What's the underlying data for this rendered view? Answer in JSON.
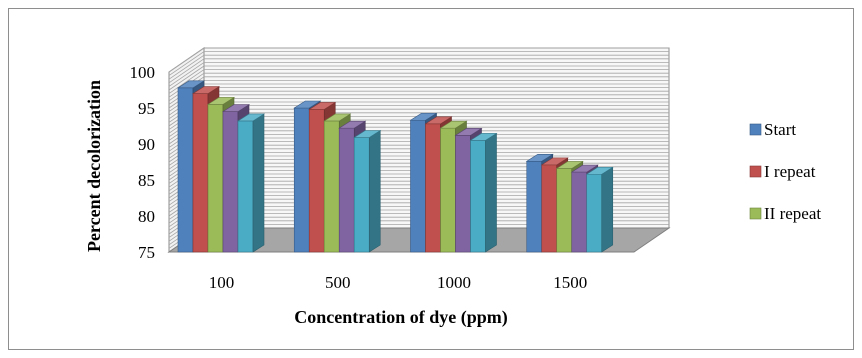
{
  "chart_data": {
    "type": "bar",
    "title": "",
    "xlabel": "Concentration of dye (ppm)",
    "ylabel": "Percent decolorization",
    "categories": [
      "100",
      "500",
      "1000",
      "1500"
    ],
    "ylim": [
      75,
      100
    ],
    "yticks": [
      "75",
      "80",
      "85",
      "90",
      "95",
      "100"
    ],
    "grid": true,
    "three_d": true,
    "legend_position": "right",
    "series": [
      {
        "name": "Start",
        "color": "#4f81bd",
        "values": [
          97.8,
          95.0,
          93.3,
          87.6
        ]
      },
      {
        "name": "I repeat",
        "color": "#c0504d",
        "values": [
          97.0,
          94.8,
          92.8,
          87.1
        ]
      },
      {
        "name": "II repeat",
        "color": "#9bbb59",
        "values": [
          95.5,
          93.2,
          92.2,
          86.6
        ]
      },
      {
        "name": "",
        "color": "#8064a2",
        "values": [
          94.5,
          92.2,
          91.2,
          86.1
        ]
      },
      {
        "name": "",
        "color": "#4bacc6",
        "values": [
          93.2,
          90.9,
          90.5,
          85.8
        ]
      }
    ]
  }
}
